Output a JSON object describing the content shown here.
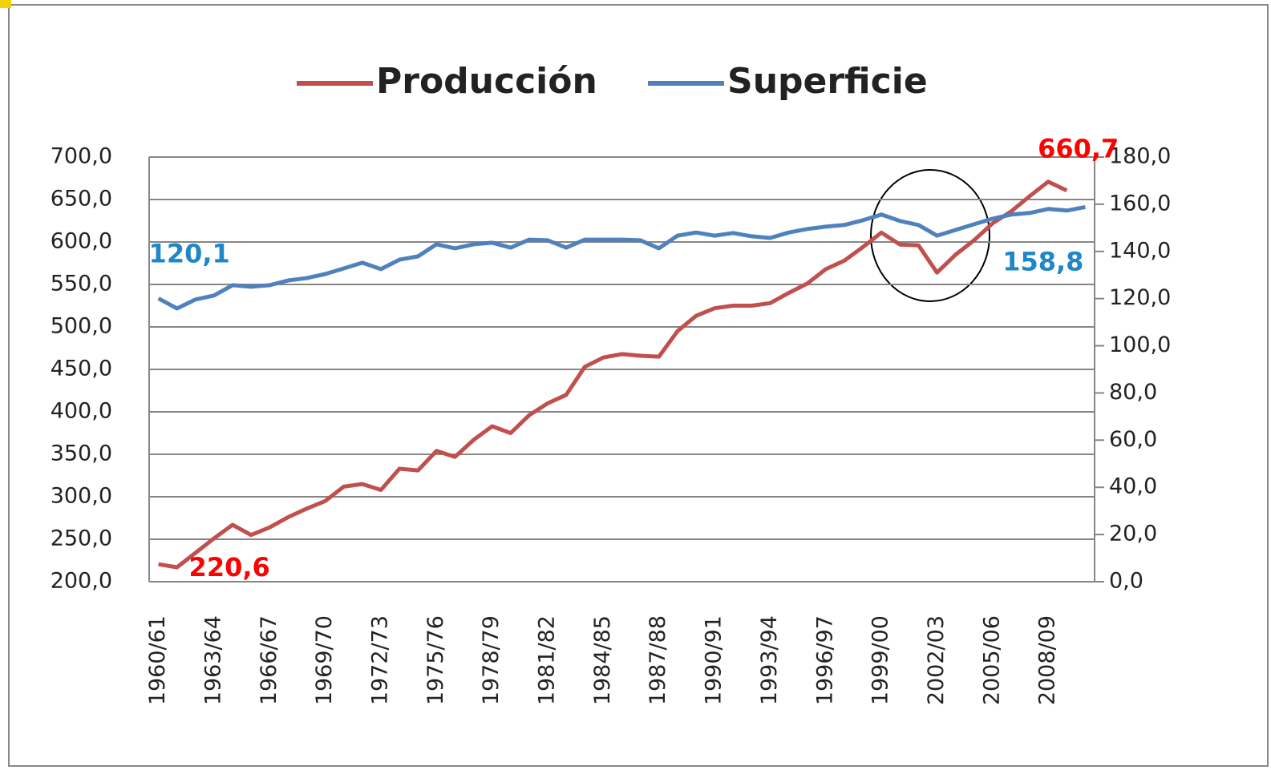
{
  "chart_data": {
    "type": "line",
    "categories": [
      "1960/61",
      null,
      null,
      "1963/64",
      null,
      null,
      "1966/67",
      null,
      null,
      "1969/70",
      null,
      null,
      "1972/73",
      null,
      null,
      "1975/76",
      null,
      null,
      "1978/79",
      null,
      null,
      "1981/82",
      null,
      null,
      "1984/85",
      null,
      null,
      "1987/88",
      null,
      null,
      "1990/91",
      null,
      null,
      "1993/94",
      null,
      null,
      "1996/97",
      null,
      null,
      "1999/00",
      null,
      null,
      "2002/03",
      null,
      null,
      "2005/06",
      null,
      null,
      "2008/09",
      null,
      null
    ],
    "series": [
      {
        "name": "Producción",
        "color": "#c0504d",
        "label_color": "#ff0000",
        "values": [
          220.6,
          217,
          234,
          251,
          267,
          255,
          264,
          276,
          286,
          295,
          312,
          315,
          308,
          333,
          331,
          354,
          347,
          367,
          383,
          375,
          396,
          410,
          420,
          453,
          464,
          468,
          466,
          465,
          495,
          513,
          522,
          525,
          525,
          528,
          540,
          551,
          568,
          578,
          594,
          611,
          597,
          596,
          564,
          585,
          602,
          622,
          636,
          654,
          671,
          660.7,
          null
        ],
        "value_labels": [
          "220,6",
          null,
          null,
          null,
          null,
          null,
          null,
          null,
          null,
          null,
          null,
          null,
          null,
          null,
          null,
          null,
          null,
          null,
          null,
          null,
          null,
          null,
          null,
          null,
          null,
          null,
          null,
          null,
          null,
          null,
          null,
          null,
          null,
          null,
          null,
          null,
          null,
          null,
          null,
          null,
          null,
          null,
          null,
          null,
          null,
          null,
          null,
          null,
          null,
          "660,7",
          null
        ]
      },
      {
        "name": "Superficie",
        "color": "#4f81bd",
        "label_color": "#1f86c8",
        "axis": "y2",
        "values": [
          120.1,
          115.8,
          119.6,
          121.3,
          125.7,
          125,
          125.7,
          127.7,
          128.7,
          130.4,
          132.8,
          135.2,
          132.5,
          136.5,
          137.9,
          143,
          141.3,
          143,
          143.7,
          141.6,
          145,
          144.7,
          141.6,
          145,
          145,
          145,
          144.7,
          141.3,
          146.7,
          148,
          146.7,
          147.8,
          146.4,
          145.7,
          148,
          149.5,
          150.5,
          151.2,
          153.2,
          155.6,
          152.9,
          151.2,
          146.7,
          149.1,
          151.5,
          153.9,
          155.6,
          156.3,
          158,
          157.3,
          158.8
        ],
        "value_labels": [
          "120,1",
          null,
          null,
          null,
          null,
          null,
          null,
          null,
          null,
          null,
          null,
          null,
          null,
          null,
          null,
          null,
          null,
          null,
          null,
          null,
          null,
          null,
          null,
          null,
          null,
          null,
          null,
          null,
          null,
          null,
          null,
          null,
          null,
          null,
          null,
          null,
          null,
          null,
          null,
          null,
          null,
          null,
          null,
          null,
          null,
          null,
          null,
          null,
          null,
          null,
          "158,8"
        ]
      }
    ],
    "ylim": [
      200,
      700
    ],
    "yticks": [
      {
        "value": 200,
        "label": "200,0"
      },
      {
        "value": 250,
        "label": "250,0"
      },
      {
        "value": 300,
        "label": "300,0"
      },
      {
        "value": 350,
        "label": "350,0"
      },
      {
        "value": 400,
        "label": "400,0"
      },
      {
        "value": 450,
        "label": "450,0"
      },
      {
        "value": 500,
        "label": "500,0"
      },
      {
        "value": 550,
        "label": "550,0"
      },
      {
        "value": 600,
        "label": "600,0"
      },
      {
        "value": 650,
        "label": "650,0"
      },
      {
        "value": 700,
        "label": "700,0"
      }
    ],
    "y2lim": [
      0,
      180
    ],
    "y2ticks": [
      {
        "value": 0,
        "label": "0,0"
      },
      {
        "value": 20,
        "label": "20,0"
      },
      {
        "value": 40,
        "label": "40,0"
      },
      {
        "value": 60,
        "label": "60,0"
      },
      {
        "value": 80,
        "label": "80,0"
      },
      {
        "value": 100,
        "label": "100,0"
      },
      {
        "value": 120,
        "label": "120,0"
      },
      {
        "value": 140,
        "label": "140,0"
      },
      {
        "value": 160,
        "label": "160,0"
      },
      {
        "value": 180,
        "label": "180,0"
      }
    ],
    "grid": true,
    "legend": "top"
  }
}
